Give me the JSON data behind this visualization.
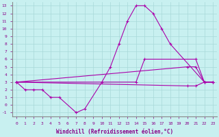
{
  "xlabel": "Windchill (Refroidissement éolien,°C)",
  "bg_color": "#c8f0f0",
  "grid_color": "#a8d8d8",
  "line_color": "#aa00aa",
  "xlim": [
    -0.5,
    23.5
  ],
  "ylim": [
    -1.5,
    13.5
  ],
  "xticks": [
    0,
    1,
    2,
    3,
    4,
    5,
    6,
    7,
    8,
    9,
    10,
    11,
    12,
    13,
    14,
    15,
    16,
    17,
    18,
    19,
    20,
    21,
    22,
    23
  ],
  "yticks": [
    -1,
    0,
    1,
    2,
    3,
    4,
    5,
    6,
    7,
    8,
    9,
    10,
    11,
    12,
    13
  ],
  "line1_x": [
    0,
    1,
    2,
    3,
    4,
    5,
    7,
    8,
    10,
    11,
    12,
    13,
    14,
    15,
    16,
    17,
    18,
    22,
    23
  ],
  "line1_y": [
    3,
    2,
    2,
    2,
    1,
    1,
    -1,
    -0.5,
    3,
    5,
    8,
    11,
    13,
    13,
    12,
    10,
    8,
    3,
    3
  ],
  "line2_x": [
    0,
    14,
    15,
    21,
    22,
    23
  ],
  "line2_y": [
    3,
    3,
    6,
    6,
    3,
    3
  ],
  "line3_x": [
    0,
    20,
    21,
    22,
    23
  ],
  "line3_y": [
    3,
    5,
    5,
    3,
    3
  ],
  "line4_x": [
    0,
    20,
    21,
    22,
    23
  ],
  "line4_y": [
    3,
    2.5,
    2.5,
    3,
    3
  ]
}
